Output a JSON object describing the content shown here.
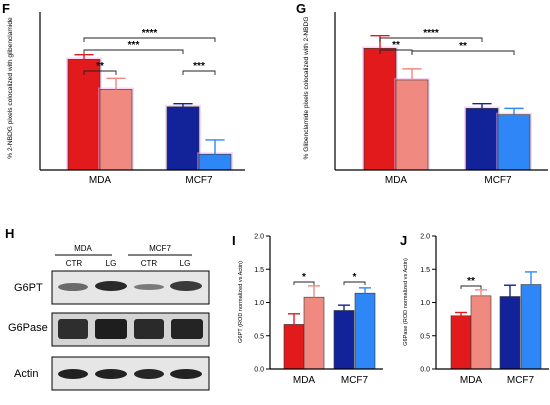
{
  "colors": {
    "red": "#e31a1c",
    "pink": "#f08a80",
    "navy": "#12239a",
    "blue": "#2f86f6",
    "axis": "#000000",
    "halo": "#f0a8f0"
  },
  "panels": {
    "F": "F",
    "G": "G",
    "H": "H",
    "I": "I",
    "J": "J"
  },
  "chart_data": [
    {
      "panel": "F",
      "type": "bar",
      "categories": [
        "MDA",
        "MCF7"
      ],
      "series": [
        {
          "values": [
            70,
            40
          ],
          "errors": [
            3,
            2
          ]
        },
        {
          "values": [
            51,
            10
          ],
          "errors": [
            7,
            9
          ]
        }
      ],
      "ylabel": "% 2-NBDG pixels colocalized with glibenclamide",
      "ylim": [
        0,
        100
      ],
      "significance": [
        {
          "label": "**"
        },
        {
          "label": "***"
        },
        {
          "label": "****"
        },
        {
          "label": "***"
        }
      ]
    },
    {
      "panel": "G",
      "type": "bar",
      "categories": [
        "MDA",
        "MCF7"
      ],
      "series": [
        {
          "values": [
            77,
            39
          ],
          "errors": [
            8,
            3
          ]
        },
        {
          "values": [
            57,
            35
          ],
          "errors": [
            7,
            4
          ]
        }
      ],
      "ylabel": "% Glibenclamide pixels colocalized with 2-NBDG",
      "ylim": [
        0,
        100
      ],
      "significance": [
        {
          "label": "**"
        },
        {
          "label": "****"
        },
        {
          "label": "**"
        }
      ]
    },
    {
      "panel": "I",
      "type": "bar",
      "categories": [
        "MDA",
        "MCF7"
      ],
      "series": [
        {
          "values": [
            0.67,
            0.88
          ],
          "errors": [
            0.16,
            0.08
          ]
        },
        {
          "values": [
            1.08,
            1.14
          ],
          "errors": [
            0.17,
            0.08
          ]
        }
      ],
      "ylabel": "G6PT (ROD normalized vs Actin)",
      "yticks": [
        "0.0",
        "0.5",
        "1.0",
        "1.5",
        "2.0"
      ],
      "ylim": [
        0,
        2.0
      ],
      "significance": [
        {
          "label": "*"
        },
        {
          "label": "*"
        }
      ]
    },
    {
      "panel": "J",
      "type": "bar",
      "categories": [
        "MDA",
        "MCF7"
      ],
      "series": [
        {
          "values": [
            0.8,
            1.09
          ],
          "errors": [
            0.05,
            0.17
          ]
        },
        {
          "values": [
            1.1,
            1.27
          ],
          "errors": [
            0.09,
            0.19
          ]
        }
      ],
      "ylabel": "G6Pase (ROD normalized vs Actin)",
      "yticks": [
        "0.0",
        "0.5",
        "1.0",
        "1.5",
        "2.0"
      ],
      "ylim": [
        0,
        2.0
      ],
      "significance": [
        {
          "label": "**"
        }
      ]
    }
  ],
  "blot": {
    "groups": [
      "MDA",
      "MCF7"
    ],
    "lanes": [
      "CTR",
      "LG",
      "CTR",
      "LG"
    ],
    "rows": [
      "G6PT",
      "G6Pase",
      "Actin"
    ]
  }
}
